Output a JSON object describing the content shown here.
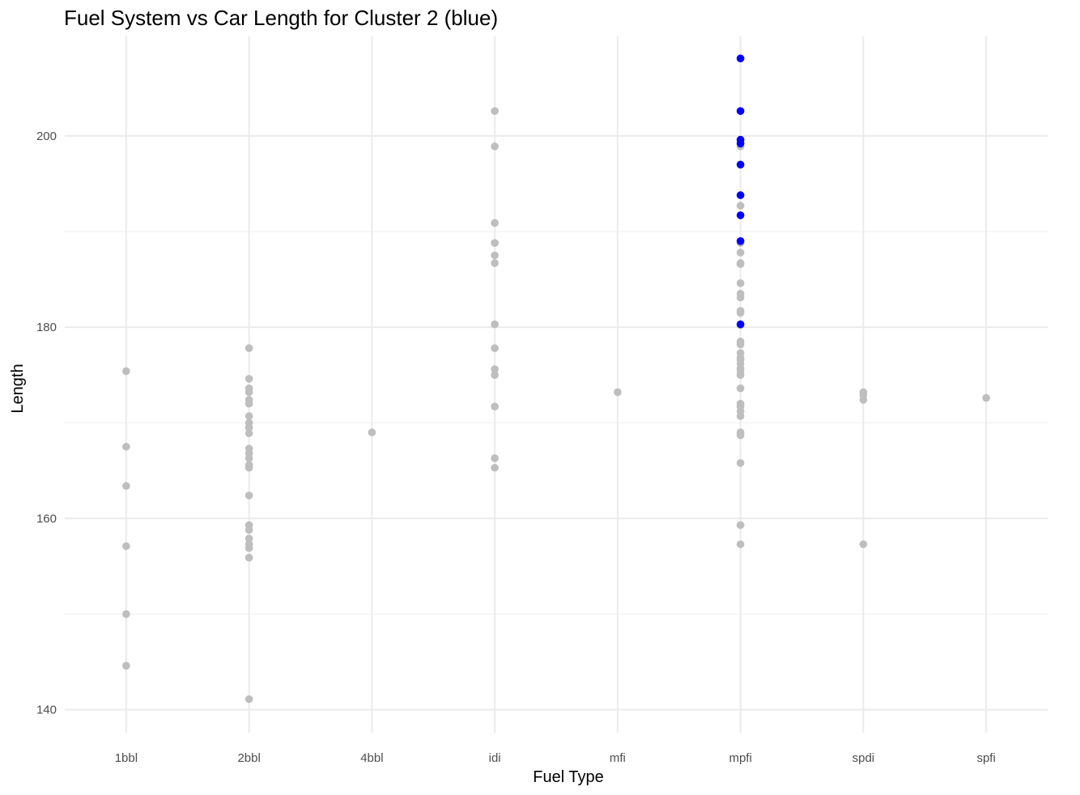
{
  "chart_data": {
    "type": "scatter",
    "title": "Fuel System vs Car Length for Cluster 2 (blue)",
    "xlabel": "Fuel Type",
    "ylabel": "Length",
    "categories": [
      "1bbl",
      "2bbl",
      "4bbl",
      "idi",
      "mfi",
      "mpfi",
      "spdi",
      "spfi"
    ],
    "ylim": [
      137.6,
      210.4
    ],
    "yticks": [
      140,
      160,
      180,
      200
    ],
    "yticks_minor": [
      150,
      170,
      190
    ],
    "grid": true,
    "legend": "none",
    "colors": {
      "cluster_2": "#0000ff",
      "other": "#bebebe"
    },
    "series": [
      {
        "points": [
          {
            "x": "1bbl",
            "y": 175.4
          },
          {
            "x": "1bbl",
            "y": 167.5
          },
          {
            "x": "1bbl",
            "y": 163.4
          },
          {
            "x": "1bbl",
            "y": 157.1
          },
          {
            "x": "1bbl",
            "y": 150.0
          },
          {
            "x": "1bbl",
            "y": 144.6
          },
          {
            "x": "2bbl",
            "y": 177.8
          },
          {
            "x": "2bbl",
            "y": 174.6
          },
          {
            "x": "2bbl",
            "y": 173.6
          },
          {
            "x": "2bbl",
            "y": 173.2
          },
          {
            "x": "2bbl",
            "y": 172.4
          },
          {
            "x": "2bbl",
            "y": 172.0
          },
          {
            "x": "2bbl",
            "y": 170.7
          },
          {
            "x": "2bbl",
            "y": 170.0
          },
          {
            "x": "2bbl",
            "y": 169.5
          },
          {
            "x": "2bbl",
            "y": 168.9
          },
          {
            "x": "2bbl",
            "y": 167.3
          },
          {
            "x": "2bbl",
            "y": 166.8
          },
          {
            "x": "2bbl",
            "y": 166.3
          },
          {
            "x": "2bbl",
            "y": 165.6
          },
          {
            "x": "2bbl",
            "y": 165.3
          },
          {
            "x": "2bbl",
            "y": 162.4
          },
          {
            "x": "2bbl",
            "y": 159.3
          },
          {
            "x": "2bbl",
            "y": 158.8
          },
          {
            "x": "2bbl",
            "y": 157.9
          },
          {
            "x": "2bbl",
            "y": 157.3
          },
          {
            "x": "2bbl",
            "y": 156.9
          },
          {
            "x": "2bbl",
            "y": 155.9
          },
          {
            "x": "2bbl",
            "y": 141.1
          },
          {
            "x": "4bbl",
            "y": 169.0
          },
          {
            "x": "idi",
            "y": 202.6
          },
          {
            "x": "idi",
            "y": 198.9
          },
          {
            "x": "idi",
            "y": 190.9
          },
          {
            "x": "idi",
            "y": 188.8
          },
          {
            "x": "idi",
            "y": 187.5
          },
          {
            "x": "idi",
            "y": 186.7
          },
          {
            "x": "idi",
            "y": 180.3
          },
          {
            "x": "idi",
            "y": 177.8
          },
          {
            "x": "idi",
            "y": 175.6
          },
          {
            "x": "idi",
            "y": 175.0
          },
          {
            "x": "idi",
            "y": 171.7
          },
          {
            "x": "idi",
            "y": 166.3
          },
          {
            "x": "idi",
            "y": 165.3
          },
          {
            "x": "mfi",
            "y": 173.2
          },
          {
            "x": "mpfi",
            "y": 198.9
          },
          {
            "x": "mpfi",
            "y": 192.7
          },
          {
            "x": "mpfi",
            "y": 188.8
          },
          {
            "x": "mpfi",
            "y": 187.8
          },
          {
            "x": "mpfi",
            "y": 186.7
          },
          {
            "x": "mpfi",
            "y": 186.6
          },
          {
            "x": "mpfi",
            "y": 184.6
          },
          {
            "x": "mpfi",
            "y": 183.5
          },
          {
            "x": "mpfi",
            "y": 183.1
          },
          {
            "x": "mpfi",
            "y": 181.7
          },
          {
            "x": "mpfi",
            "y": 181.5
          },
          {
            "x": "mpfi",
            "y": 180.2
          },
          {
            "x": "mpfi",
            "y": 178.5
          },
          {
            "x": "mpfi",
            "y": 178.2
          },
          {
            "x": "mpfi",
            "y": 177.3
          },
          {
            "x": "mpfi",
            "y": 176.8
          },
          {
            "x": "mpfi",
            "y": 176.6
          },
          {
            "x": "mpfi",
            "y": 176.2
          },
          {
            "x": "mpfi",
            "y": 175.7
          },
          {
            "x": "mpfi",
            "y": 175.4
          },
          {
            "x": "mpfi",
            "y": 175.0
          },
          {
            "x": "mpfi",
            "y": 173.6
          },
          {
            "x": "mpfi",
            "y": 172.0
          },
          {
            "x": "mpfi",
            "y": 171.7
          },
          {
            "x": "mpfi",
            "y": 171.2
          },
          {
            "x": "mpfi",
            "y": 170.7
          },
          {
            "x": "mpfi",
            "y": 169.0
          },
          {
            "x": "mpfi",
            "y": 168.7
          },
          {
            "x": "mpfi",
            "y": 165.8
          },
          {
            "x": "mpfi",
            "y": 159.3
          },
          {
            "x": "mpfi",
            "y": 157.3
          },
          {
            "x": "spdi",
            "y": 173.2
          },
          {
            "x": "spdi",
            "y": 172.9
          },
          {
            "x": "spdi",
            "y": 172.4
          },
          {
            "x": "spdi",
            "y": 157.3
          },
          {
            "x": "spfi",
            "y": 172.6
          }
        ]
      },
      {
        "points": [
          {
            "x": "mpfi",
            "y": 208.1
          },
          {
            "x": "mpfi",
            "y": 202.6
          },
          {
            "x": "mpfi",
            "y": 199.6
          },
          {
            "x": "mpfi",
            "y": 199.2
          },
          {
            "x": "mpfi",
            "y": 197.0
          },
          {
            "x": "mpfi",
            "y": 193.8
          },
          {
            "x": "mpfi",
            "y": 191.7
          },
          {
            "x": "mpfi",
            "y": 189.0
          },
          {
            "x": "mpfi",
            "y": 180.3
          }
        ]
      }
    ]
  }
}
